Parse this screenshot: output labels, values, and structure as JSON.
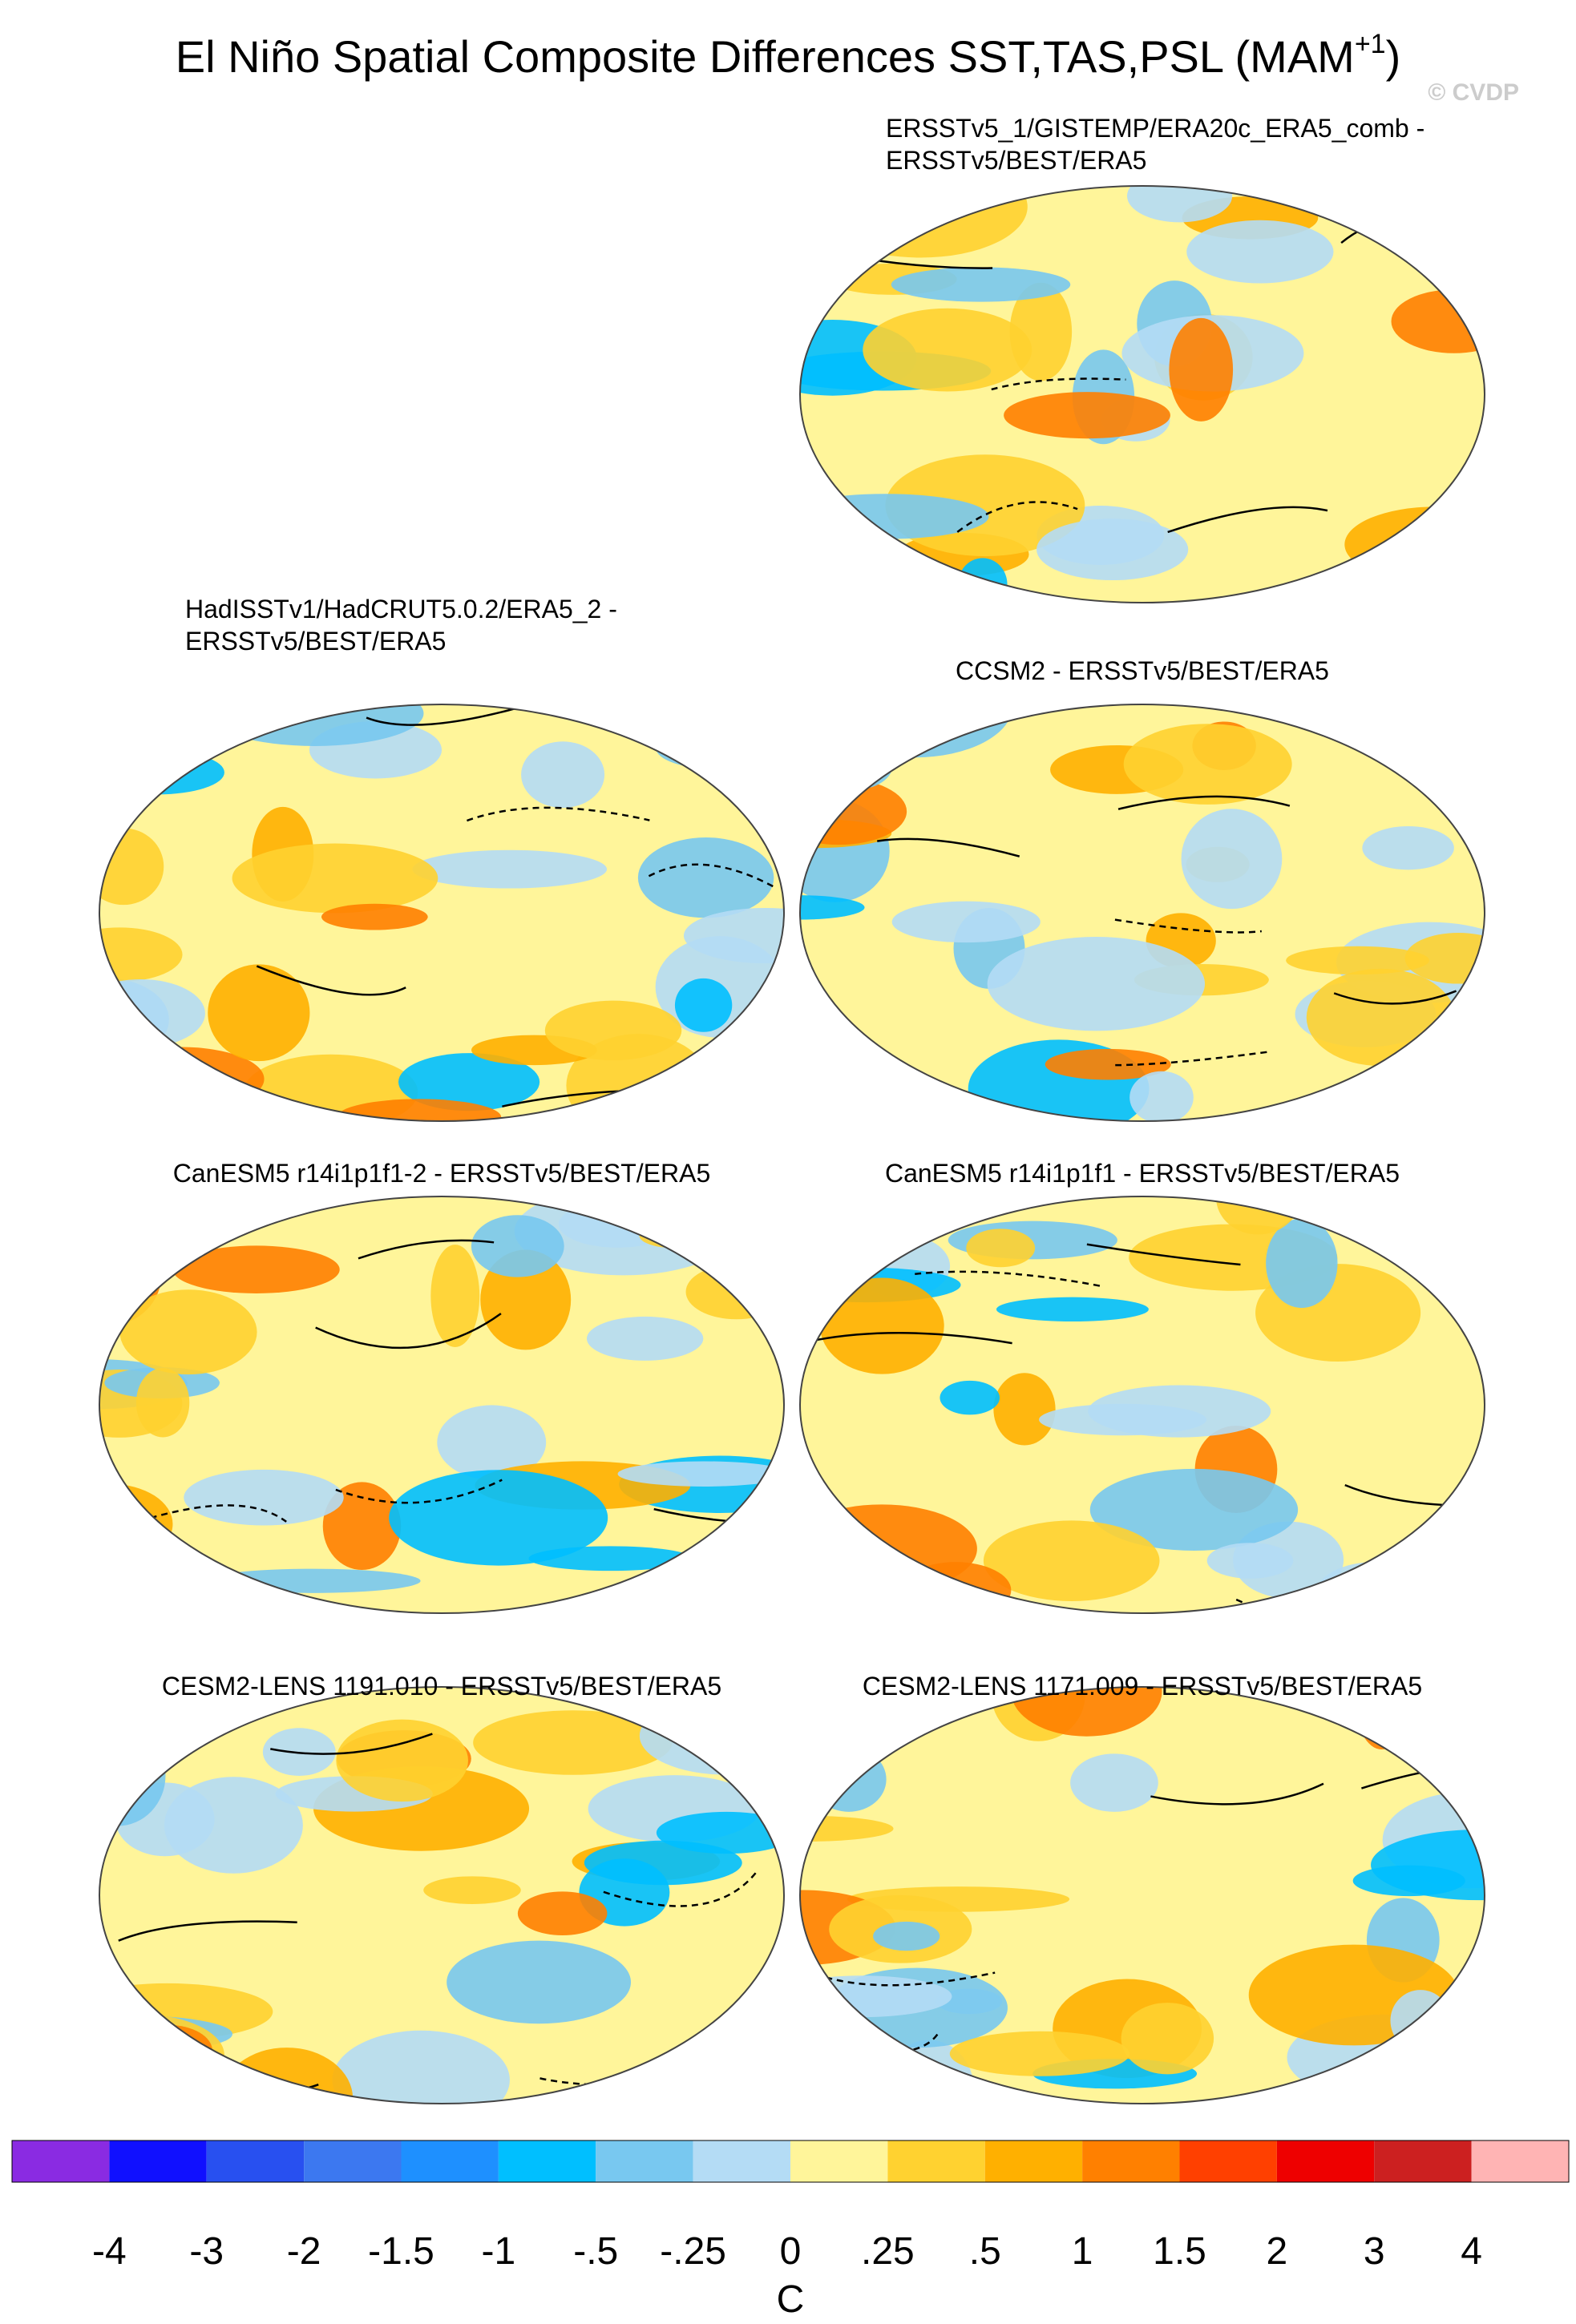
{
  "title": {
    "main": "El Niño Spatial Composite Differences SST,TAS,PSL (MAM",
    "sup": "+1",
    "end": ")"
  },
  "watermark": "© CVDP",
  "panels": [
    {
      "title": [
        "ERSSTv5_1/GISTEMP/ERA20c_ERA5_comb -",
        "ERSSTv5/BEST/ERA5"
      ]
    },
    {
      "title": [
        "HadISSTv1/HadCRUT5.0.2/ERA5_2 -",
        "ERSSTv5/BEST/ERA5"
      ]
    },
    {
      "title": [
        "CCSM2 - ERSSTv5/BEST/ERA5"
      ]
    },
    {
      "title": [
        "CanESM5 r14i1p1f1-2 - ERSSTv5/BEST/ERA5"
      ]
    },
    {
      "title": [
        "CanESM5 r14i1p1f1 - ERSSTv5/BEST/ERA5"
      ]
    },
    {
      "title": [
        "CESM2-LENS 1191.010 - ERSSTv5/BEST/ERA5"
      ]
    },
    {
      "title": [
        "CESM2-LENS 1171.009 - ERSSTv5/BEST/ERA5"
      ]
    }
  ],
  "colorbar": {
    "colors": [
      "#8a2be2",
      "#1010ff",
      "#2850f0",
      "#3c78f0",
      "#1e90ff",
      "#00bfff",
      "#78c8f0",
      "#b4dcf5",
      "#fff59a",
      "#ffd230",
      "#ffb000",
      "#ff8000",
      "#ff4000",
      "#ee0000",
      "#cc2020",
      "#ffb4b4"
    ],
    "labels": [
      "-4",
      "-3",
      "-2",
      "-1.5",
      "-1",
      "-.5",
      "-.25",
      "0",
      ".25",
      ".5",
      "1",
      "1.5",
      "2",
      "3",
      "4"
    ],
    "unit": "C"
  }
}
